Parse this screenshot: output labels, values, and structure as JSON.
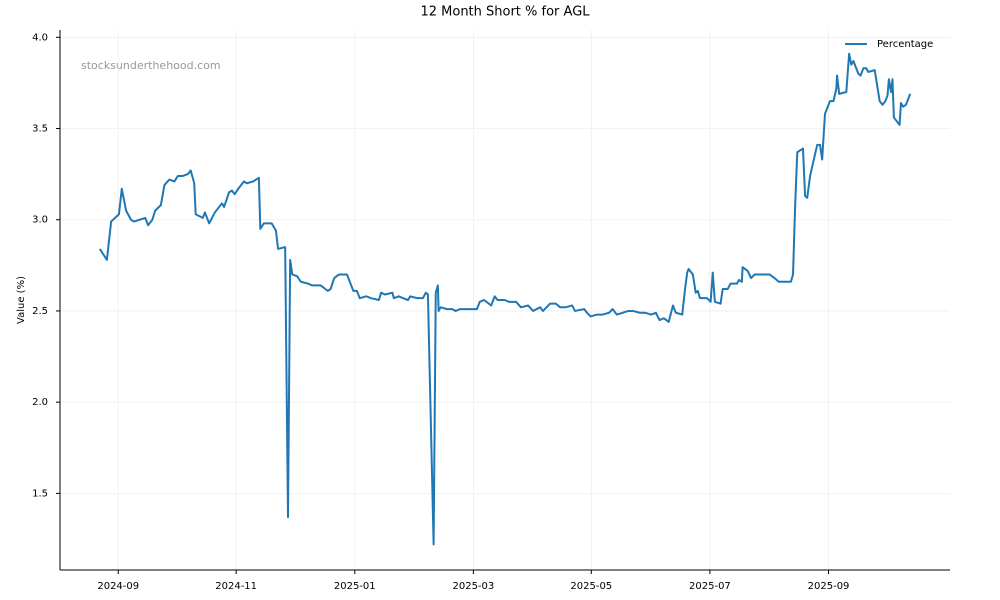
{
  "chart_data": {
    "type": "line",
    "title": "12 Month Short % for AGL",
    "ylabel": "Value (%)",
    "watermark": "stocksunderthehood.com",
    "legend": "upper right",
    "grid": true,
    "x": [
      2024.641,
      2024.651,
      2024.657,
      2024.668,
      2024.672,
      2024.678,
      2024.685,
      2024.689,
      2024.705,
      2024.709,
      2024.715,
      2024.719,
      2024.727,
      2024.732,
      2024.739,
      2024.746,
      2024.751,
      2024.758,
      2024.765,
      2024.769,
      2024.774,
      2024.776,
      2024.786,
      2024.789,
      2024.792,
      2024.795,
      2024.803,
      2024.813,
      2024.816,
      2024.823,
      2024.827,
      2024.831,
      2024.836,
      2024.844,
      2024.848,
      2024.857,
      2024.865,
      2024.867,
      2024.872,
      2024.883,
      2024.889,
      2024.892,
      2024.902,
      2024.906,
      2024.909,
      2024.912,
      2024.919,
      2024.924,
      2024.934,
      2024.94,
      2024.952,
      2024.962,
      2024.966,
      2024.971,
      2024.978,
      2024.989,
      2024.998,
      2025.003,
      2025.007,
      2025.016,
      2025.023,
      2025.034,
      2025.037,
      2025.043,
      2025.053,
      2025.055,
      2025.062,
      2025.068,
      2025.075,
      2025.078,
      2025.088,
      2025.096,
      2025.1,
      2025.103,
      2025.111,
      2025.114,
      2025.117,
      2025.118,
      2025.121,
      2025.13,
      2025.137,
      2025.142,
      2025.148,
      2025.158,
      2025.172,
      2025.176,
      2025.182,
      2025.192,
      2025.197,
      2025.201,
      2025.211,
      2025.217,
      2025.227,
      2025.234,
      2025.244,
      2025.251,
      2025.261,
      2025.265,
      2025.275,
      2025.283,
      2025.289,
      2025.297,
      2025.306,
      2025.31,
      2025.323,
      2025.327,
      2025.332,
      2025.341,
      2025.349,
      2025.358,
      2025.363,
      2025.369,
      2025.377,
      2025.385,
      2025.392,
      2025.401,
      2025.409,
      2025.417,
      2025.424,
      2025.429,
      2025.435,
      2025.442,
      2025.448,
      2025.452,
      2025.461,
      2025.465,
      2025.468,
      2025.47,
      2025.476,
      2025.48,
      2025.483,
      2025.486,
      2025.496,
      2025.501,
      2025.504,
      2025.507,
      2025.515,
      2025.518,
      2025.525,
      2025.529,
      2025.538,
      2025.541,
      2025.545,
      2025.546,
      2025.553,
      2025.558,
      2025.563,
      2025.584,
      2025.591,
      2025.597,
      2025.606,
      2025.614,
      2025.617,
      2025.62,
      2025.623,
      2025.631,
      2025.634,
      2025.637,
      2025.641,
      2025.651,
      2025.655,
      2025.658,
      2025.662,
      2025.669,
      2025.674,
      2025.678,
      2025.679,
      2025.682,
      2025.692,
      2025.696,
      2025.699,
      2025.702,
      2025.709,
      2025.712,
      2025.716,
      2025.72,
      2025.723,
      2025.732,
      2025.739,
      2025.743,
      2025.747,
      2025.75,
      2025.752,
      2025.755,
      2025.757,
      2025.759,
      2025.767,
      2025.769,
      2025.772,
      2025.776,
      2025.782
    ],
    "series": [
      {
        "name": "Percentage",
        "color": "#1f77b4",
        "values": [
          2.84,
          2.78,
          2.99,
          3.03,
          3.17,
          3.05,
          3.0,
          2.99,
          3.01,
          2.97,
          3.0,
          3.05,
          3.08,
          3.19,
          3.22,
          3.21,
          3.24,
          3.24,
          3.25,
          3.27,
          3.2,
          3.03,
          3.01,
          3.04,
          3.01,
          2.98,
          3.04,
          3.09,
          3.07,
          3.15,
          3.16,
          3.14,
          3.17,
          3.21,
          3.2,
          3.21,
          3.23,
          2.95,
          2.98,
          2.98,
          2.94,
          2.84,
          2.85,
          1.37,
          2.78,
          2.7,
          2.69,
          2.66,
          2.65,
          2.64,
          2.64,
          2.61,
          2.62,
          2.68,
          2.7,
          2.7,
          2.61,
          2.61,
          2.57,
          2.58,
          2.57,
          2.56,
          2.6,
          2.59,
          2.6,
          2.57,
          2.58,
          2.57,
          2.56,
          2.58,
          2.57,
          2.57,
          2.6,
          2.59,
          1.22,
          2.6,
          2.64,
          2.5,
          2.52,
          2.51,
          2.51,
          2.5,
          2.51,
          2.51,
          2.51,
          2.55,
          2.56,
          2.53,
          2.58,
          2.56,
          2.56,
          2.55,
          2.55,
          2.52,
          2.53,
          2.5,
          2.52,
          2.5,
          2.54,
          2.54,
          2.52,
          2.52,
          2.53,
          2.5,
          2.51,
          2.49,
          2.47,
          2.48,
          2.48,
          2.49,
          2.51,
          2.48,
          2.49,
          2.5,
          2.5,
          2.49,
          2.49,
          2.48,
          2.49,
          2.45,
          2.46,
          2.44,
          2.53,
          2.49,
          2.48,
          2.62,
          2.71,
          2.73,
          2.7,
          2.6,
          2.61,
          2.57,
          2.57,
          2.55,
          2.71,
          2.55,
          2.54,
          2.62,
          2.62,
          2.65,
          2.65,
          2.67,
          2.66,
          2.74,
          2.72,
          2.68,
          2.7,
          2.7,
          2.68,
          2.66,
          2.66,
          2.66,
          2.7,
          3.08,
          3.37,
          3.39,
          3.13,
          3.12,
          3.24,
          3.41,
          3.41,
          3.33,
          3.58,
          3.65,
          3.65,
          3.72,
          3.79,
          3.69,
          3.7,
          3.91,
          3.85,
          3.87,
          3.8,
          3.79,
          3.83,
          3.83,
          3.81,
          3.82,
          3.65,
          3.63,
          3.65,
          3.68,
          3.77,
          3.7,
          3.77,
          3.56,
          3.52,
          3.64,
          3.62,
          3.63,
          3.69
        ]
      }
    ],
    "xlim": [
      2024.585,
      2025.838
    ],
    "xticks": [
      {
        "value": 2024.667,
        "label": "2024-09"
      },
      {
        "value": 2024.833,
        "label": "2024-11"
      },
      {
        "value": 2025.0,
        "label": "2025-01"
      },
      {
        "value": 2025.167,
        "label": "2025-03"
      },
      {
        "value": 2025.333,
        "label": "2025-05"
      },
      {
        "value": 2025.5,
        "label": "2025-07"
      },
      {
        "value": 2025.667,
        "label": "2025-09"
      }
    ],
    "ylim": [
      1.08,
      4.04
    ],
    "yticks": [
      1.5,
      {
        "value": 2,
        "label": "2.0"
      },
      2.5,
      {
        "value": 3,
        "label": "3.0"
      },
      3.5,
      {
        "value": 4,
        "label": "4.0"
      }
    ]
  }
}
